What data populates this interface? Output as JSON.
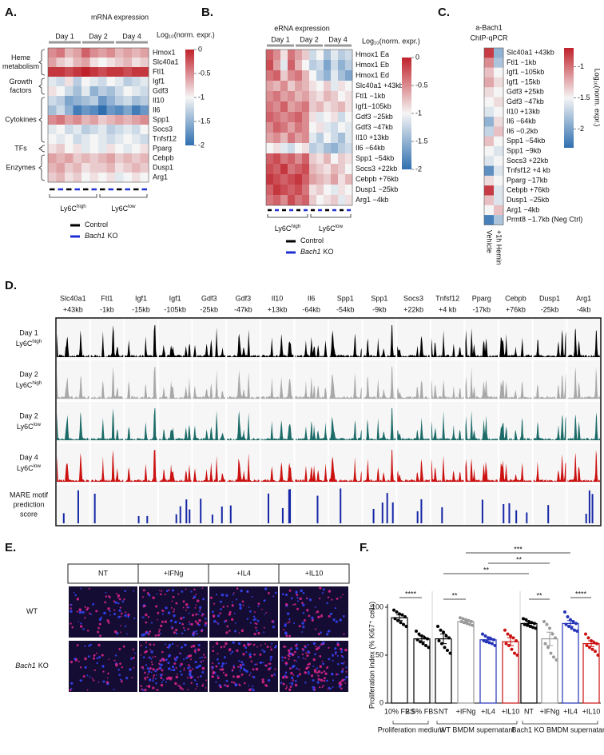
{
  "chart_data": [
    {
      "type": "heatmap",
      "panel": "A.",
      "title": "mRNA expression",
      "column_groups": [
        "Day 1",
        "Day 2",
        "Day 4"
      ],
      "rows": [
        "Hmox1",
        "Slc40a1",
        "Ftl1",
        "Igf1",
        "Gdf3",
        "Il10",
        "Il6",
        "Spp1",
        "Socs3",
        "Tnfsf12",
        "Pparg",
        "Cebpb",
        "Dusp1",
        "Arg1"
      ],
      "row_groups": [
        [
          "Heme",
          "metabolism"
        ],
        [
          "Growth",
          "factors"
        ],
        [
          "Cytokines"
        ],
        [
          "TFs"
        ],
        [
          "Enzymes"
        ]
      ],
      "values": [
        [
          -0.5,
          -0.4,
          -0.7,
          -0.6,
          -0.3,
          -0.5,
          -0.6,
          -0.5,
          -0.7,
          -0.6,
          -0.7,
          -0.6
        ],
        [
          -0.6,
          -0.8,
          -0.9,
          -0.7,
          -0.6,
          -0.9,
          -1.0,
          -0.9,
          -0.8,
          -0.7,
          -0.9,
          -0.8
        ],
        [
          -0.1,
          -0.1,
          -0.2,
          -0.1,
          0,
          -0.1,
          -0.2,
          -0.1,
          -0.1,
          -0.2,
          -0.1,
          -0.1
        ],
        [
          -1.1,
          -1.2,
          -0.9,
          -1.3,
          -1.0,
          -1.1,
          -1.2,
          -1.0,
          -1.1,
          -1.3,
          -1.2,
          -1.1
        ],
        [
          -0.9,
          -1.0,
          -1.2,
          -1.4,
          -1.1,
          -1.5,
          -1.3,
          -1.4,
          -1.2,
          -1.0,
          -1.1,
          -1.2
        ],
        [
          -1.2,
          -1.3,
          -1.6,
          -1.5,
          -1.4,
          -1.3,
          -1.7,
          -1.5,
          -1.3,
          -1.2,
          -1.4,
          -1.3
        ],
        [
          -1.4,
          -1.2,
          -1.5,
          -1.9,
          -1.7,
          -1.8,
          -2.0,
          -1.7,
          -1.8,
          -1.6,
          -1.9,
          -1.7
        ],
        [
          -0.5,
          -0.4,
          -0.6,
          -0.5,
          -0.7,
          -0.6,
          -0.8,
          -0.7,
          -0.6,
          -0.7,
          -0.6,
          -0.5
        ],
        [
          -1.1,
          -1.0,
          -1.2,
          -1.1,
          -1.3,
          -1.2,
          -1.1,
          -1.3,
          -1.2,
          -1.1,
          -1.2,
          -1.0
        ],
        [
          -1.0,
          -1.1,
          -1.0,
          -1.2,
          -1.1,
          -1.0,
          -1.1,
          -1.2,
          -1.1,
          -1.0,
          -1.1,
          -1.2
        ],
        [
          -0.9,
          -0.8,
          -1.0,
          -0.9,
          -1.1,
          -1.0,
          -1.1,
          -0.9,
          -1.0,
          -1.1,
          -1.0,
          -0.9
        ],
        [
          -0.6,
          -0.7,
          -0.6,
          -0.8,
          -0.7,
          -0.8,
          -0.7,
          -0.6,
          -0.8,
          -0.7,
          -0.8,
          -0.7
        ],
        [
          -0.7,
          -0.6,
          -0.8,
          -0.7,
          -0.9,
          -0.8,
          -0.8,
          -0.7,
          -0.9,
          -0.8,
          -0.7,
          -0.8
        ],
        [
          -0.8,
          -0.7,
          -0.9,
          -0.8,
          -1.0,
          -0.9,
          -1.0,
          -0.9,
          -1.1,
          -1.0,
          -0.9,
          -1.0
        ]
      ],
      "colormap": [
        "#2f6fb0",
        "#f5f5f5",
        "#c0222b"
      ],
      "colorbar": {
        "label": "Log₁₀(norm. expr.)",
        "lim": [
          -2,
          0
        ],
        "ticks": [
          0,
          -0.5,
          -1,
          -1.5,
          -2
        ]
      },
      "condition_groups": [
        {
          "base": "Ly6C",
          "sup": "high"
        },
        {
          "base": "Ly6C",
          "sup": "low"
        }
      ],
      "legend": [
        {
          "name": "Control",
          "color": "#000000"
        },
        {
          "gene": "Bach1",
          "name": "KO",
          "color": "#1f2fd6"
        }
      ]
    },
    {
      "type": "heatmap",
      "panel": "B.",
      "title": "eRNA expression",
      "column_groups": [
        "Day 1",
        "Day 2",
        "Day 4"
      ],
      "rows": [
        "Hmox1 Ea",
        "Hmox1 Eb",
        "Hmox1 Ed",
        "Slc40a1 +43kb",
        "Ftl1 −1kb",
        "Igf1−105kb",
        "Gdf3 −25kb",
        "Gdf3 −47kb",
        "Il10 +13kb",
        "Il6 −64kb",
        "Spp1 −54kb",
        "Socs3 +22kb",
        "Cebpb +76kb",
        "Dusp1 −25kb",
        "Arg1 −4kb"
      ],
      "values": [
        [
          -0.3,
          -0.5,
          -0.9,
          -0.4,
          -0.6,
          -0.8,
          -1.2,
          -1.0,
          -1.4,
          -1.1,
          -1.3,
          -1.2
        ],
        [
          -0.2,
          -0.6,
          -1.1,
          -0.3,
          -0.7,
          -1.0,
          -1.3,
          -1.2,
          -1.6,
          -1.2,
          -1.5,
          -1.3
        ],
        [
          -0.4,
          -0.3,
          -0.8,
          -0.5,
          -0.4,
          -0.7,
          -1.0,
          -1.3,
          -1.5,
          -1.1,
          -1.4,
          -1.6
        ],
        [
          -0.6,
          -0.7,
          -0.5,
          -0.8,
          -0.6,
          -0.7,
          -0.9,
          -1.0,
          -0.8,
          -1.1,
          -0.9,
          -1.0
        ],
        [
          -0.5,
          -0.4,
          -0.6,
          -0.5,
          -0.7,
          -0.6,
          -0.8,
          -0.9,
          -0.7,
          -0.8,
          -1.0,
          -0.9
        ],
        [
          -0.4,
          -0.5,
          -0.3,
          -0.6,
          -0.5,
          -0.4,
          -0.8,
          -0.7,
          -0.9,
          -0.8,
          -0.7,
          -0.9
        ],
        [
          -0.3,
          -0.4,
          -0.5,
          -0.4,
          -0.3,
          -0.5,
          -0.9,
          -1.1,
          -1.0,
          -0.9,
          -1.2,
          -1.0
        ],
        [
          -0.5,
          -0.3,
          -0.4,
          -0.6,
          -0.4,
          -0.5,
          -1.0,
          -0.9,
          -1.1,
          -1.2,
          -1.0,
          -1.1
        ],
        [
          -0.6,
          -0.5,
          -0.7,
          -0.4,
          -0.6,
          -0.5,
          -1.1,
          -1.3,
          -1.0,
          -1.2,
          -1.4,
          -1.1
        ],
        [
          -1.0,
          -0.9,
          -1.1,
          -1.2,
          -1.0,
          -0.9,
          -1.3,
          -1.2,
          -1.4,
          -1.5,
          -1.3,
          -1.2
        ],
        [
          -0.3,
          -0.2,
          -0.4,
          -0.3,
          -0.5,
          -0.3,
          -0.8,
          -0.9,
          -0.7,
          -1.0,
          -0.8,
          -0.9
        ],
        [
          -0.2,
          -0.3,
          -0.1,
          -0.4,
          -0.3,
          -0.2,
          -0.7,
          -0.8,
          -0.9,
          -0.7,
          -0.8,
          -1.0
        ],
        [
          -0.1,
          -0.2,
          -0.3,
          -0.2,
          -0.1,
          -0.3,
          -0.6,
          -0.7,
          -0.8,
          -0.6,
          -0.9,
          -0.7
        ],
        [
          -0.3,
          -0.1,
          -0.2,
          -0.3,
          -0.2,
          -0.4,
          -0.9,
          -0.8,
          -1.0,
          -1.1,
          -0.9,
          -1.0
        ],
        [
          -0.4,
          -0.3,
          -0.5,
          -0.2,
          -0.4,
          -0.3,
          -0.8,
          -1.0,
          -0.9,
          -0.8,
          -1.1,
          -0.9
        ]
      ],
      "colormap": [
        "#2f6fb0",
        "#f5f5f5",
        "#c0222b"
      ],
      "colorbar": {
        "label": "Log₁₀(norm. expr.)",
        "lim": [
          -2,
          0
        ],
        "ticks": [
          0,
          -0.5,
          -1,
          -1.5,
          -2
        ]
      },
      "condition_groups": [
        {
          "base": "Ly6C",
          "sup": "high"
        },
        {
          "base": "Ly6C",
          "sup": "low"
        }
      ],
      "legend": [
        {
          "name": "Control",
          "color": "#000000"
        },
        {
          "gene": "Bach1",
          "name": "KO",
          "color": "#1f2fd6"
        }
      ]
    },
    {
      "type": "heatmap",
      "panel": "C.",
      "title": [
        "a-Bach1",
        "ChIP-qPCR"
      ],
      "rows": [
        "Slc40a1 +43kb",
        "Ftl1 −1kb",
        "Igf1 −105kb",
        "Igf1 −15kb",
        "Gdf3 +25kb",
        "Gdf3 −47kb",
        "Il10 +13kb",
        "Il6 −64kb",
        "Il6 −0.2kb",
        "Spp1 −54kb",
        "Spp1 −9kb",
        "Socs3 +22kb",
        "Tnfsf12 +4 kb",
        "Pparg −17kb",
        "Cebpb +76kb",
        "Dusp1 −25kb",
        "Arg1 −4kb",
        "Prmt8 −1.7kb (Neg Ctrl)"
      ],
      "columns": [
        "Vehicle",
        "+1h Hemin"
      ],
      "values": [
        [
          -0.8,
          -1.9
        ],
        [
          -1.1,
          -1.8
        ],
        [
          -1.3,
          -1.5
        ],
        [
          -1.2,
          -1.4
        ],
        [
          -1.4,
          -1.5
        ],
        [
          -1.5,
          -1.4
        ],
        [
          -1.6,
          -1.5
        ],
        [
          -1.9,
          -1.4
        ],
        [
          -1.7,
          -1.3
        ],
        [
          -1.3,
          -1.5
        ],
        [
          -1.5,
          -1.6
        ],
        [
          -1.6,
          -1.5
        ],
        [
          -2.1,
          -1.6
        ],
        [
          -1.4,
          -1.5
        ],
        [
          -0.8,
          -1.6
        ],
        [
          -1.3,
          -1.6
        ],
        [
          -1.5,
          -1.3
        ],
        [
          -2.2,
          -1.8
        ]
      ],
      "colormap": [
        "#2f6fb0",
        "#f5f5f5",
        "#c0222b"
      ],
      "colorbar": {
        "label": "Log₁₀(norm. expr.)",
        "lim": [
          -2.3,
          -0.7
        ],
        "ticks": [
          -1,
          -1.5,
          -2
        ]
      }
    },
    {
      "type": "tracks",
      "panel": "D.",
      "columns": [
        [
          "Slc40a1",
          "+43kb"
        ],
        [
          "Ftl1",
          "-1kb"
        ],
        [
          "Igf1",
          "-15kb"
        ],
        [
          "Igf1",
          "-105kb"
        ],
        [
          "Gdf3",
          "-25kb"
        ],
        [
          "Gdf3",
          "-47kb"
        ],
        [
          "Il10",
          "+13kb"
        ],
        [
          "Il6",
          "-64kb"
        ],
        [
          "Spp1",
          "-54kb"
        ],
        [
          "Spp1",
          "-9kb"
        ],
        [
          "Socs3",
          "+22kb"
        ],
        [
          "Tnfsf12",
          "+4 kb"
        ],
        [
          "Pparg",
          "-17kb"
        ],
        [
          "Cebpb",
          "+76kb"
        ],
        [
          "Dusp1",
          "-25kb"
        ],
        [
          "Arg1",
          "-4kb"
        ]
      ],
      "rows": [
        {
          "day": "Day 1",
          "cell": {
            "base": "Ly6C",
            "sup": "high"
          },
          "color": "#000000"
        },
        {
          "day": "Day 2",
          "cell": {
            "base": "Ly6C",
            "sup": "high"
          },
          "color": "#a8a8a8"
        },
        {
          "day": "Day 2",
          "cell": {
            "base": "Ly6C",
            "sup": "low"
          },
          "color": "#1c6b68"
        },
        {
          "day": "Day 4",
          "cell": {
            "base": "Ly6C",
            "sup": "low"
          },
          "color": "#cc1111"
        }
      ],
      "motif_row": {
        "label": [
          "MARE motif",
          "prediction",
          "score"
        ],
        "color": "#1526a6"
      }
    },
    {
      "type": "image-grid",
      "panel": "E.",
      "columns": [
        "NT",
        "+IFNg",
        "+IL4",
        "+IL10"
      ],
      "rows": [
        {
          "label": "WT"
        },
        {
          "gene": "Bach1",
          "label": "KO"
        }
      ]
    },
    {
      "type": "bar",
      "panel": "F.",
      "ylabel": "Proliferation index (% Ki67⁺ cells)",
      "categories": [
        "10% FBS",
        "2.5% FBS",
        "NT",
        "+IFNg",
        "+IL4",
        "+IL10",
        "NT",
        "+IFNg",
        "+IL4",
        "+IL10"
      ],
      "values": [
        89,
        67,
        67,
        85,
        66,
        64,
        83,
        67,
        83,
        62
      ],
      "errors": [
        3,
        3,
        5,
        2,
        3,
        4,
        2,
        7,
        3,
        3
      ],
      "points": [
        [
          97,
          95,
          93,
          92,
          90,
          88,
          86,
          84,
          82,
          80
        ],
        [
          75,
          72,
          70,
          68,
          67,
          66,
          64,
          62,
          60,
          58
        ],
        [
          80,
          76,
          74,
          70,
          68,
          65,
          62,
          58,
          55,
          52
        ],
        [
          89,
          88,
          87,
          86,
          85,
          85,
          84,
          83,
          82,
          81
        ],
        [
          72,
          70,
          68,
          67,
          66,
          65,
          64,
          63,
          62,
          60
        ],
        [
          76,
          72,
          70,
          68,
          65,
          62,
          60,
          56,
          52,
          50
        ],
        [
          88,
          87,
          85,
          84,
          83,
          82,
          81,
          80,
          79,
          78
        ],
        [
          85,
          82,
          78,
          72,
          68,
          62,
          58,
          52,
          48,
          45
        ],
        [
          95,
          90,
          87,
          85,
          83,
          82,
          80,
          78,
          76,
          75
        ],
        [
          72,
          68,
          65,
          63,
          62,
          60,
          58,
          56,
          54,
          50
        ]
      ],
      "colors": [
        "#000000",
        "#000000",
        "#000000",
        "#9a9a9a",
        "#2433b8",
        "#cc1111",
        "#000000",
        "#9a9a9a",
        "#2433b8",
        "#cc1111"
      ],
      "ylim": [
        0,
        100
      ],
      "yticks": [
        0,
        50,
        100
      ],
      "groups": [
        "Proliferation medium",
        "WT BMDM supernatant",
        "Bach1 KO BMDM supernatant"
      ],
      "significance": [
        "****",
        "**",
        "**",
        "****",
        "**",
        "**",
        "***"
      ]
    }
  ]
}
